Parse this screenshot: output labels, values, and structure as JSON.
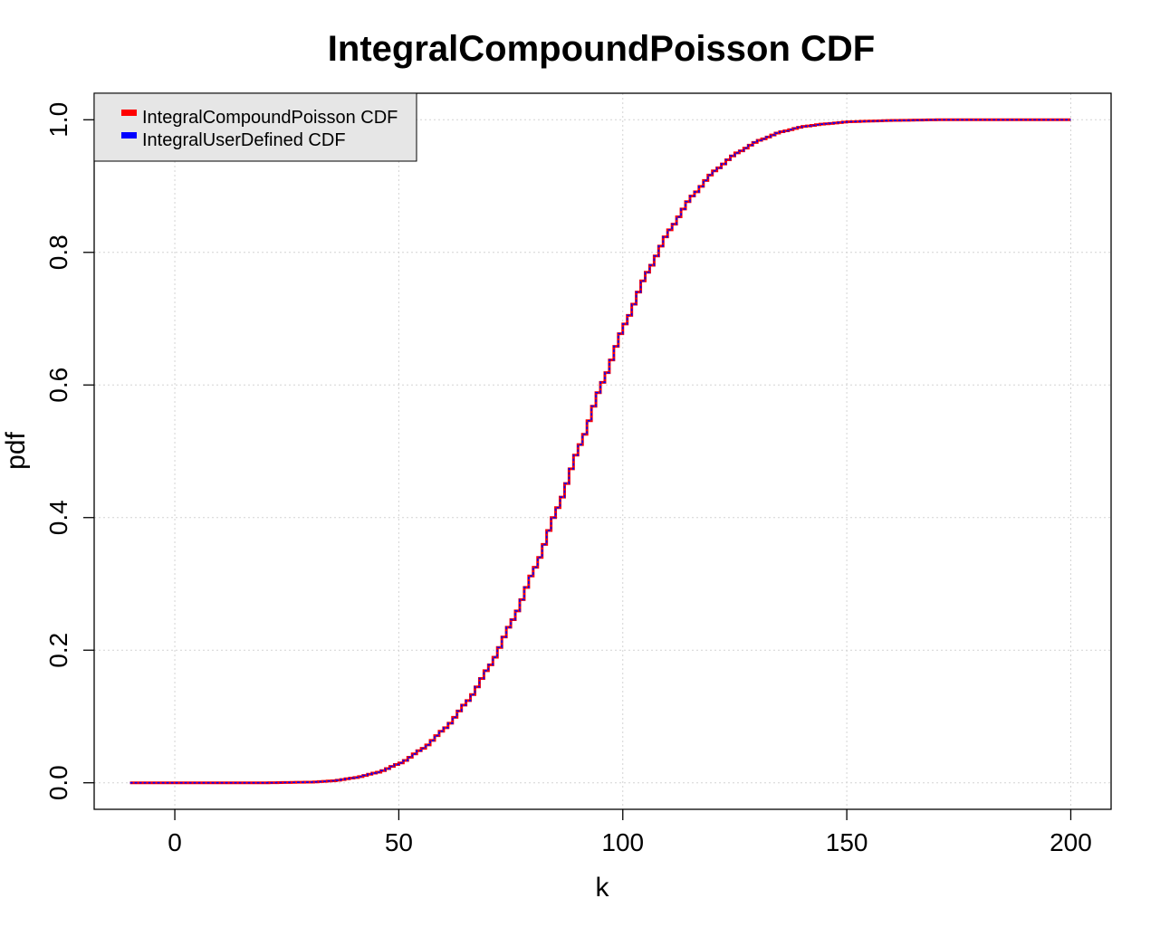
{
  "chart_data": {
    "type": "line",
    "step": true,
    "title": "IntegralCompoundPoisson CDF",
    "xlabel": "k",
    "ylabel": "pdf",
    "xlim": [
      -18,
      209
    ],
    "ylim": [
      -0.04,
      1.04
    ],
    "xticks": [
      0,
      50,
      100,
      150,
      200
    ],
    "xtick_labels": [
      "0",
      "50",
      "100",
      "150",
      "200"
    ],
    "yticks": [
      0,
      0.2,
      0.4,
      0.6,
      0.8,
      1.0
    ],
    "ytick_labels": [
      "0.0",
      "0.2",
      "0.4",
      "0.6",
      "0.8",
      "1.0"
    ],
    "grid": true,
    "legend_position": "top-left",
    "series": [
      {
        "name": "IntegralCompoundPoisson CDF",
        "color": "#ff0000",
        "x": [
          -10,
          0,
          10,
          20,
          30,
          35,
          40,
          45,
          50,
          55,
          60,
          65,
          70,
          75,
          80,
          85,
          90,
          95,
          100,
          105,
          110,
          115,
          120,
          125,
          130,
          135,
          140,
          145,
          150,
          155,
          160,
          170,
          180,
          190,
          200
        ],
        "y": [
          0,
          0,
          0,
          0,
          0.001,
          0.003,
          0.008,
          0.016,
          0.03,
          0.052,
          0.083,
          0.124,
          0.178,
          0.246,
          0.325,
          0.415,
          0.51,
          0.604,
          0.692,
          0.77,
          0.834,
          0.885,
          0.923,
          0.95,
          0.969,
          0.982,
          0.99,
          0.994,
          0.997,
          0.998,
          0.999,
          1.0,
          1.0,
          1.0,
          1.0
        ]
      },
      {
        "name": "IntegralUserDefined CDF",
        "color": "#0000ff",
        "x": [
          -10,
          0,
          10,
          20,
          30,
          35,
          40,
          45,
          50,
          55,
          60,
          65,
          70,
          75,
          80,
          85,
          90,
          95,
          100,
          105,
          110,
          115,
          120,
          125,
          130,
          135,
          140,
          145,
          150,
          155,
          160,
          170,
          180,
          190,
          200
        ],
        "y": [
          0,
          0,
          0,
          0,
          0.001,
          0.003,
          0.008,
          0.016,
          0.03,
          0.052,
          0.083,
          0.124,
          0.178,
          0.246,
          0.325,
          0.415,
          0.51,
          0.604,
          0.692,
          0.77,
          0.834,
          0.885,
          0.923,
          0.95,
          0.969,
          0.982,
          0.99,
          0.994,
          0.997,
          0.998,
          0.999,
          1.0,
          1.0,
          1.0,
          1.0
        ]
      }
    ]
  }
}
